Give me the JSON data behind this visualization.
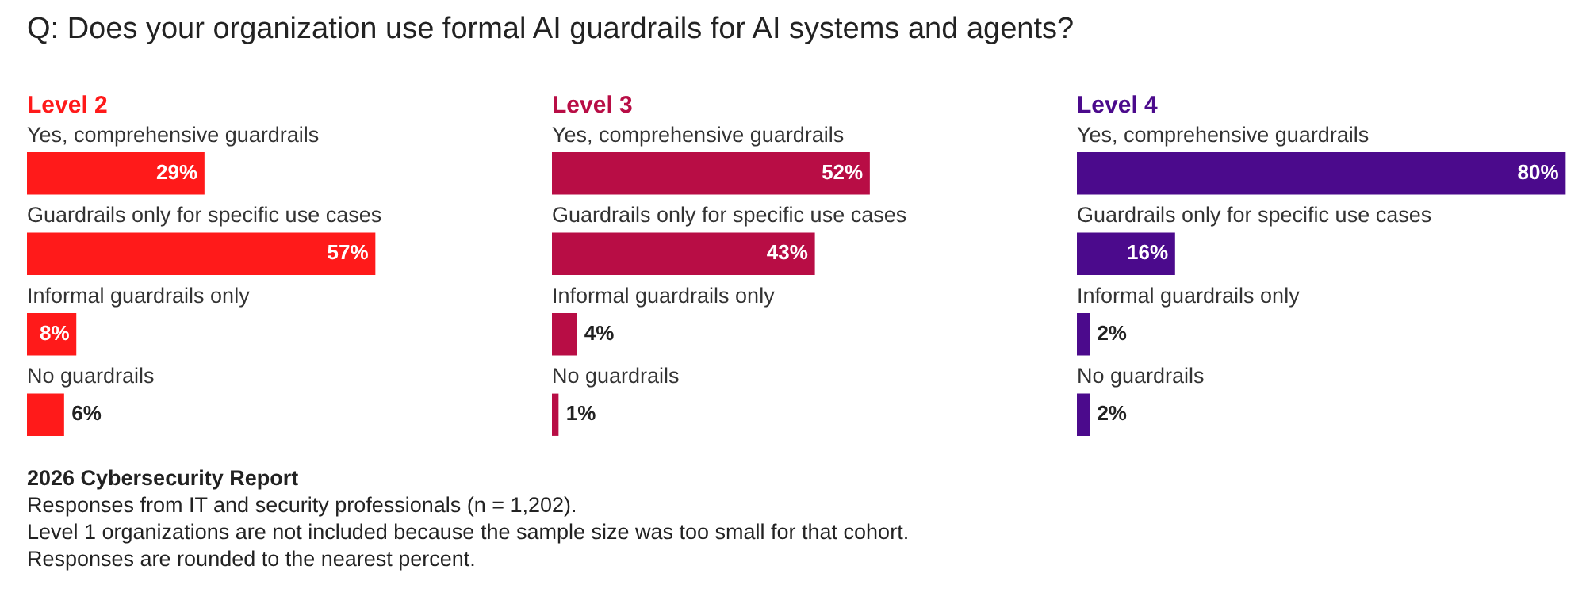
{
  "chart_data": [
    {
      "type": "other",
      "title": "Q: Does your organization use formal AI guardrails for AI systems and agents?",
      "annotations": [
        "2026 Cybersecurity Report",
        "Responses from IT and security professionals (n = 1,202).",
        "Level 1 organizations are not included because the sample size was too small for that cohort.",
        "Responses are rounded to the nearest percent."
      ]
    },
    {
      "type": "bar",
      "orientation": "horizontal",
      "title": "Level 2",
      "categories": [
        "Yes, comprehensive guardrails",
        "Guardrails only for specific use cases",
        "Informal guardrails only",
        "No guardrails"
      ],
      "values": [
        29,
        57,
        8,
        6
      ],
      "value_labels": [
        "29%",
        "57%",
        "8%",
        "6%"
      ],
      "color": "#ff1a1a"
    },
    {
      "type": "bar",
      "orientation": "horizontal",
      "title": "Level 3",
      "categories": [
        "Yes, comprehensive guardrails",
        "Guardrails only for specific use cases",
        "Informal guardrails only",
        "No guardrails"
      ],
      "values": [
        52,
        43,
        4,
        1
      ],
      "value_labels": [
        "52%",
        "43%",
        "4%",
        "1%"
      ],
      "color": "#b80d45"
    },
    {
      "type": "bar",
      "orientation": "horizontal",
      "title": "Level 4",
      "categories": [
        "Yes, comprehensive guardrails",
        "Guardrails only for specific use cases",
        "Informal guardrails only",
        "No guardrails"
      ],
      "values": [
        80,
        16,
        2,
        2
      ],
      "value_labels": [
        "80%",
        "16%",
        "2%",
        "2%"
      ],
      "color": "#4b0a8c"
    }
  ]
}
